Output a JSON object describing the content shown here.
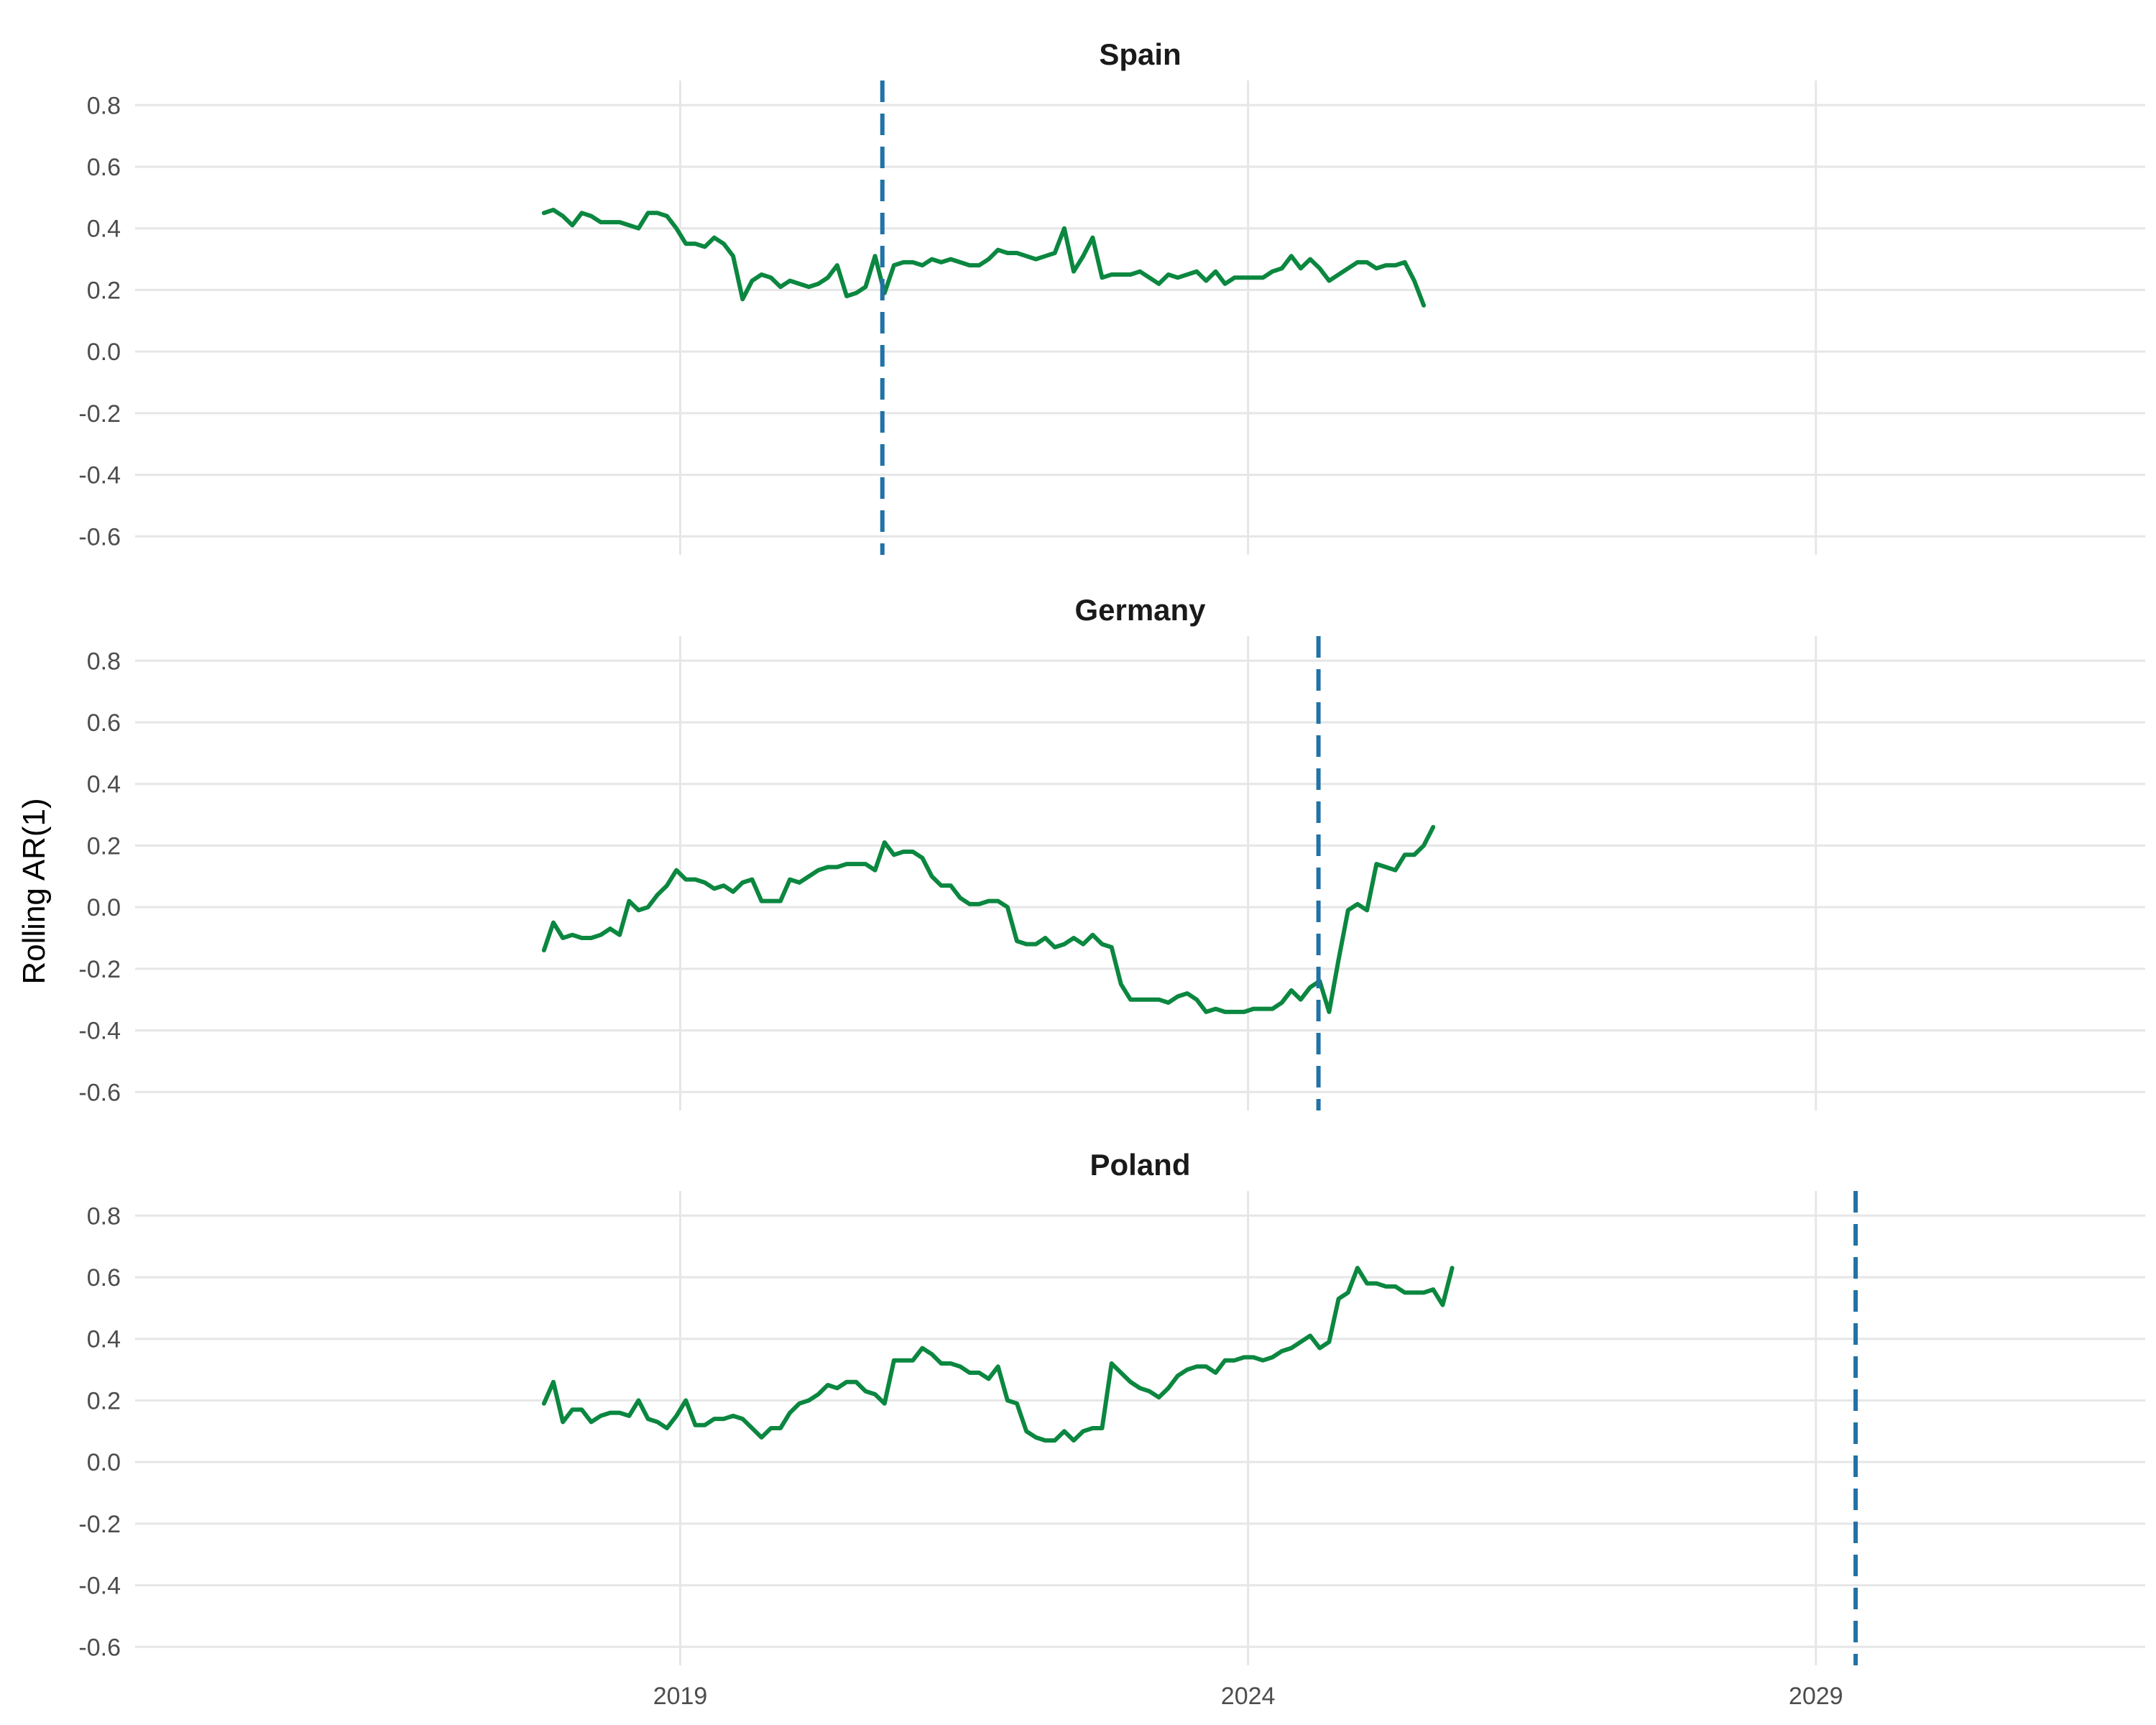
{
  "chart_data": {
    "type": "line",
    "ylabel": "Rolling AR(1)",
    "xlabel": "",
    "ylim": [
      -0.66,
      0.88
    ],
    "xlim": [
      2014.2,
      2031.9
    ],
    "x_ticks": [
      2019,
      2024,
      2029
    ],
    "y_ticks": [
      -0.6,
      -0.4,
      -0.2,
      0.0,
      0.2,
      0.4,
      0.6,
      0.8
    ],
    "y_tick_labels": [
      "-0.6",
      "-0.4",
      "-0.2",
      "0.0",
      "0.2",
      "0.4",
      "0.6",
      "0.8"
    ],
    "grid": true,
    "line_color": "#0b8740",
    "marker_line_color": "#2272a6",
    "panels": [
      {
        "title": "Spain",
        "marker_x": 2020.78,
        "x_start": 2017.8,
        "x_step": 0.0833,
        "values": [
          0.45,
          0.46,
          0.44,
          0.41,
          0.45,
          0.44,
          0.42,
          0.42,
          0.42,
          0.41,
          0.4,
          0.45,
          0.45,
          0.44,
          0.4,
          0.35,
          0.35,
          0.34,
          0.37,
          0.35,
          0.31,
          0.17,
          0.23,
          0.25,
          0.24,
          0.21,
          0.23,
          0.22,
          0.21,
          0.22,
          0.24,
          0.28,
          0.18,
          0.19,
          0.21,
          0.31,
          0.19,
          0.28,
          0.29,
          0.29,
          0.28,
          0.3,
          0.29,
          0.3,
          0.29,
          0.28,
          0.28,
          0.3,
          0.33,
          0.32,
          0.32,
          0.31,
          0.3,
          0.31,
          0.32,
          0.4,
          0.26,
          0.31,
          0.37,
          0.24,
          0.25,
          0.25,
          0.25,
          0.26,
          0.24,
          0.22,
          0.25,
          0.24,
          0.25,
          0.26,
          0.23,
          0.26,
          0.22,
          0.24,
          0.24,
          0.24,
          0.24,
          0.26,
          0.27,
          0.31,
          0.27,
          0.3,
          0.27,
          0.23,
          0.25,
          0.27,
          0.29,
          0.29,
          0.27,
          0.28,
          0.28,
          0.29,
          0.23,
          0.15
        ]
      },
      {
        "title": "Germany",
        "marker_x": 2024.62,
        "x_start": 2017.8,
        "x_step": 0.0833,
        "values": [
          -0.14,
          -0.05,
          -0.1,
          -0.09,
          -0.1,
          -0.1,
          -0.09,
          -0.07,
          -0.09,
          0.02,
          -0.01,
          0.0,
          0.04,
          0.07,
          0.12,
          0.09,
          0.09,
          0.08,
          0.06,
          0.07,
          0.05,
          0.08,
          0.09,
          0.02,
          0.02,
          0.02,
          0.09,
          0.08,
          0.1,
          0.12,
          0.13,
          0.13,
          0.14,
          0.14,
          0.14,
          0.12,
          0.21,
          0.17,
          0.18,
          0.18,
          0.16,
          0.1,
          0.07,
          0.07,
          0.03,
          0.01,
          0.01,
          0.02,
          0.02,
          0.0,
          -0.11,
          -0.12,
          -0.12,
          -0.1,
          -0.13,
          -0.12,
          -0.1,
          -0.12,
          -0.09,
          -0.12,
          -0.13,
          -0.25,
          -0.3,
          -0.3,
          -0.3,
          -0.3,
          -0.31,
          -0.29,
          -0.28,
          -0.3,
          -0.34,
          -0.33,
          -0.34,
          -0.34,
          -0.34,
          -0.33,
          -0.33,
          -0.33,
          -0.31,
          -0.27,
          -0.3,
          -0.26,
          -0.24,
          -0.34,
          -0.17,
          -0.01,
          0.01,
          -0.01,
          0.14,
          0.13,
          0.12,
          0.17,
          0.17,
          0.2,
          0.26
        ]
      },
      {
        "title": "Poland",
        "marker_x": 2029.35,
        "x_start": 2017.8,
        "x_step": 0.0833,
        "values": [
          0.19,
          0.26,
          0.13,
          0.17,
          0.17,
          0.13,
          0.15,
          0.16,
          0.16,
          0.15,
          0.2,
          0.14,
          0.13,
          0.11,
          0.15,
          0.2,
          0.12,
          0.12,
          0.14,
          0.14,
          0.15,
          0.14,
          0.11,
          0.08,
          0.11,
          0.11,
          0.16,
          0.19,
          0.2,
          0.22,
          0.25,
          0.24,
          0.26,
          0.26,
          0.23,
          0.22,
          0.19,
          0.33,
          0.33,
          0.33,
          0.37,
          0.35,
          0.32,
          0.32,
          0.31,
          0.29,
          0.29,
          0.27,
          0.31,
          0.2,
          0.19,
          0.1,
          0.08,
          0.07,
          0.07,
          0.1,
          0.07,
          0.1,
          0.11,
          0.11,
          0.32,
          0.29,
          0.26,
          0.24,
          0.23,
          0.21,
          0.24,
          0.28,
          0.3,
          0.31,
          0.31,
          0.29,
          0.33,
          0.33,
          0.34,
          0.34,
          0.33,
          0.34,
          0.36,
          0.37,
          0.39,
          0.41,
          0.37,
          0.39,
          0.53,
          0.55,
          0.63,
          0.58,
          0.58,
          0.57,
          0.57,
          0.55,
          0.55,
          0.55,
          0.56,
          0.51,
          0.63
        ]
      }
    ]
  }
}
